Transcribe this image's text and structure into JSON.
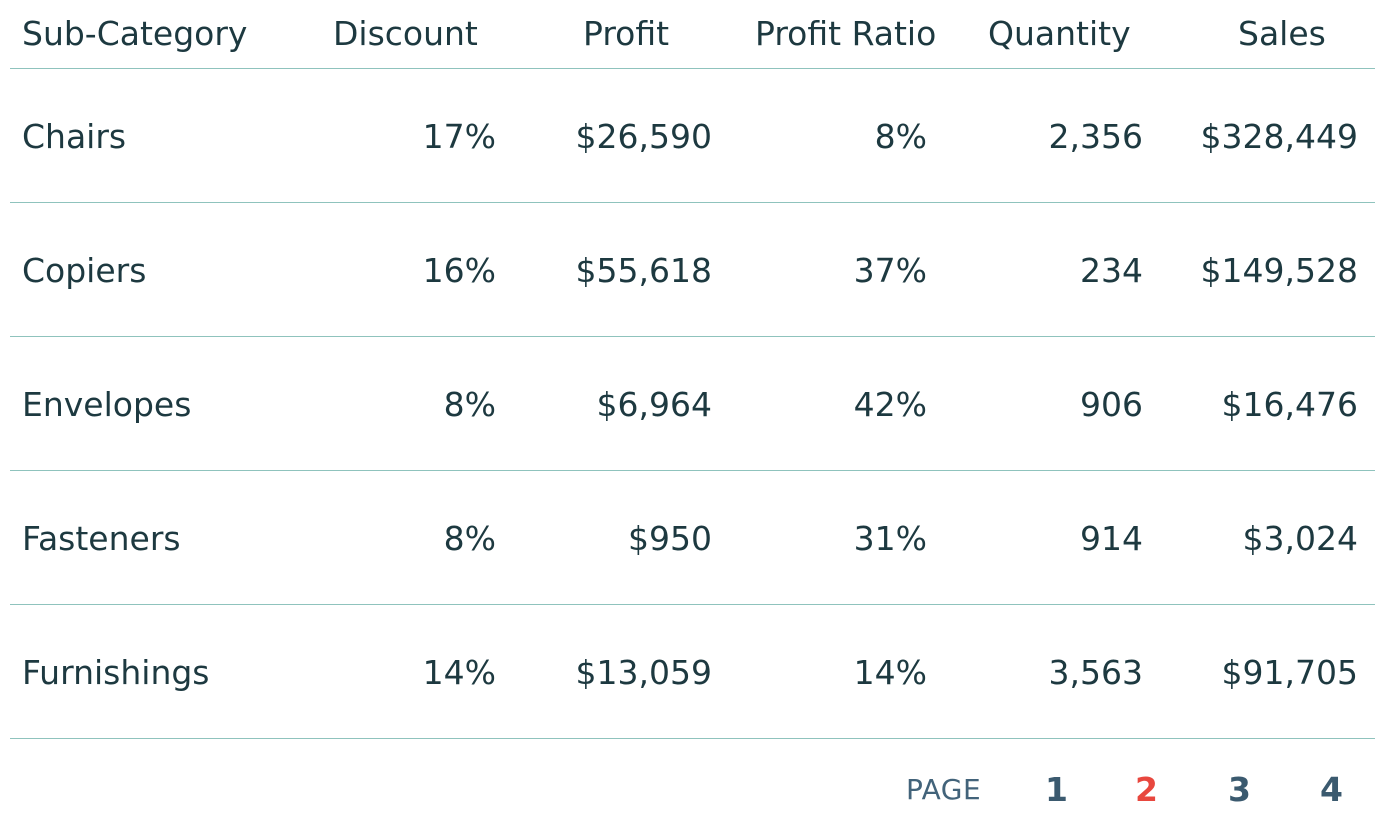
{
  "table": {
    "columns": [
      "Sub-Category",
      "Discount",
      "Profit",
      "Profit Ratio",
      "Quantity",
      "Sales"
    ],
    "rows": [
      [
        "Chairs",
        "17%",
        "$26,590",
        "8%",
        "2,356",
        "$328,449"
      ],
      [
        "Copiers",
        "16%",
        "$55,618",
        "37%",
        "234",
        "$149,528"
      ],
      [
        "Envelopes",
        "8%",
        "$6,964",
        "42%",
        "906",
        "$16,476"
      ],
      [
        "Fasteners",
        "8%",
        "$950",
        "31%",
        "914",
        "$3,024"
      ],
      [
        "Furnishings",
        "14%",
        "$13,059",
        "14%",
        "3,563",
        "$91,705"
      ]
    ]
  },
  "pager": {
    "label": "PAGE",
    "pages": [
      "1",
      "2",
      "3",
      "4"
    ],
    "current_page": "2"
  },
  "colors": {
    "text": "#1d3940",
    "divider": "#8fc3bd",
    "page_link": "#3b5a6f",
    "active_page": "#e8473e"
  }
}
